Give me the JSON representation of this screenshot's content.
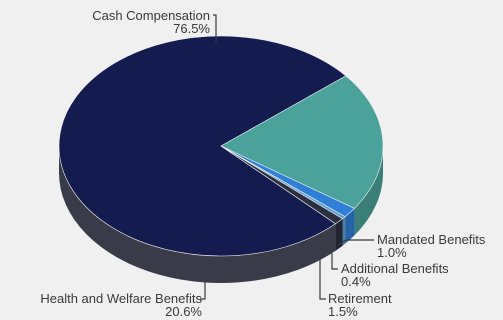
{
  "chart_data": {
    "type": "pie",
    "style": "3d",
    "labels": [
      "Cash Compensation",
      "Health and Welfare Benefits",
      "Retirement",
      "Additional Benefits",
      "Mandated Benefits"
    ],
    "values": [
      76.5,
      20.6,
      1.5,
      0.4,
      1.0
    ],
    "value_labels": [
      "76.5%",
      "20.6%",
      "1.5%",
      "0.4%",
      "1.0%"
    ],
    "colors": [
      "#141c4f",
      "#4aa29a",
      "#2f7fd6",
      "#5f9fd0",
      "#2c2f3f"
    ],
    "legend": "none"
  }
}
